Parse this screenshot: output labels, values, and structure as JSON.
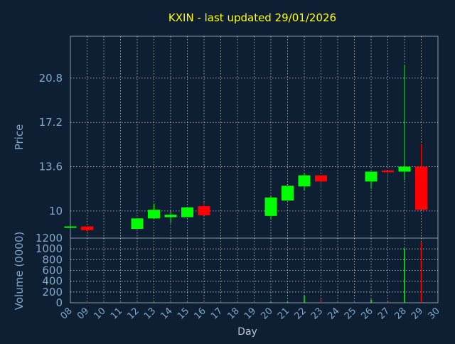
{
  "title": "KXIN - last updated 29/01/2026",
  "colors": {
    "background": "#0f1f33",
    "axis_text": "#7fa8c9",
    "title": "#ffff00",
    "up": "#00ff00",
    "down": "#ff0000",
    "grid": "#ffffff"
  },
  "chart_data": [
    {
      "type": "candlestick",
      "ylabel": "Price",
      "ylim": [
        7.8,
        24.2
      ],
      "yticks": [
        "20.8",
        "17.2",
        "13.6",
        "10"
      ],
      "grid": true,
      "candles": [
        {
          "day": 8,
          "open": 8.75,
          "close": 8.75,
          "high": 8.75,
          "low": 8.75
        },
        {
          "day": 9,
          "open": 8.75,
          "close": 8.45,
          "high": 8.75,
          "low": 8.3
        },
        {
          "day": 12,
          "open": 8.55,
          "close": 9.4,
          "high": 9.4,
          "low": 8.55
        },
        {
          "day": 13,
          "open": 9.4,
          "close": 10.1,
          "high": 10.6,
          "low": 9.4
        },
        {
          "day": 14,
          "open": 9.5,
          "close": 9.7,
          "high": 10.0,
          "low": 9.0
        },
        {
          "day": 15,
          "open": 9.5,
          "close": 10.3,
          "high": 10.3,
          "low": 9.5
        },
        {
          "day": 16,
          "open": 10.4,
          "close": 9.65,
          "high": 10.7,
          "low": 9.65
        },
        {
          "day": 20,
          "open": 9.6,
          "close": 11.1,
          "high": 11.2,
          "low": 9.3
        },
        {
          "day": 21,
          "open": 10.85,
          "close": 12.05,
          "high": 12.05,
          "low": 10.85
        },
        {
          "day": 22,
          "open": 12.0,
          "close": 12.9,
          "high": 13.1,
          "low": 11.7
        },
        {
          "day": 23,
          "open": 12.9,
          "close": 12.4,
          "high": 12.9,
          "low": 11.8
        },
        {
          "day": 26,
          "open": 12.4,
          "close": 13.2,
          "high": 13.2,
          "low": 11.8
        },
        {
          "day": 27,
          "open": 13.3,
          "close": 13.15,
          "high": 13.3,
          "low": 12.4
        },
        {
          "day": 28,
          "open": 13.2,
          "close": 13.6,
          "high": 21.9,
          "low": 12.5
        },
        {
          "day": 29,
          "open": 13.6,
          "close": 10.1,
          "high": 15.4,
          "low": 10.1
        }
      ]
    },
    {
      "type": "bar",
      "ylabel": "Volume (0000)",
      "xlabel": "Day",
      "ylim": [
        0,
        1200
      ],
      "yticks": [
        "1200",
        "1000",
        "800",
        "600",
        "400",
        "200",
        "0"
      ],
      "xticks": [
        "08",
        "09",
        "10",
        "11",
        "12",
        "13",
        "14",
        "15",
        "16",
        "17",
        "18",
        "19",
        "20",
        "21",
        "22",
        "23",
        "24",
        "25",
        "26",
        "27",
        "28",
        "29",
        "30"
      ],
      "grid": true,
      "bars": [
        {
          "day": 8,
          "value": 5,
          "dir": "up"
        },
        {
          "day": 9,
          "value": 8,
          "dir": "down"
        },
        {
          "day": 12,
          "value": 5,
          "dir": "up"
        },
        {
          "day": 13,
          "value": 10,
          "dir": "up"
        },
        {
          "day": 14,
          "value": 6,
          "dir": "up"
        },
        {
          "day": 15,
          "value": 8,
          "dir": "up"
        },
        {
          "day": 16,
          "value": 8,
          "dir": "down"
        },
        {
          "day": 20,
          "value": 15,
          "dir": "up"
        },
        {
          "day": 21,
          "value": 15,
          "dir": "up"
        },
        {
          "day": 22,
          "value": 130,
          "dir": "up"
        },
        {
          "day": 23,
          "value": 80,
          "dir": "down"
        },
        {
          "day": 26,
          "value": 60,
          "dir": "up"
        },
        {
          "day": 27,
          "value": 20,
          "dir": "down"
        },
        {
          "day": 28,
          "value": 1010,
          "dir": "up"
        },
        {
          "day": 29,
          "value": 1120,
          "dir": "down"
        }
      ]
    }
  ]
}
